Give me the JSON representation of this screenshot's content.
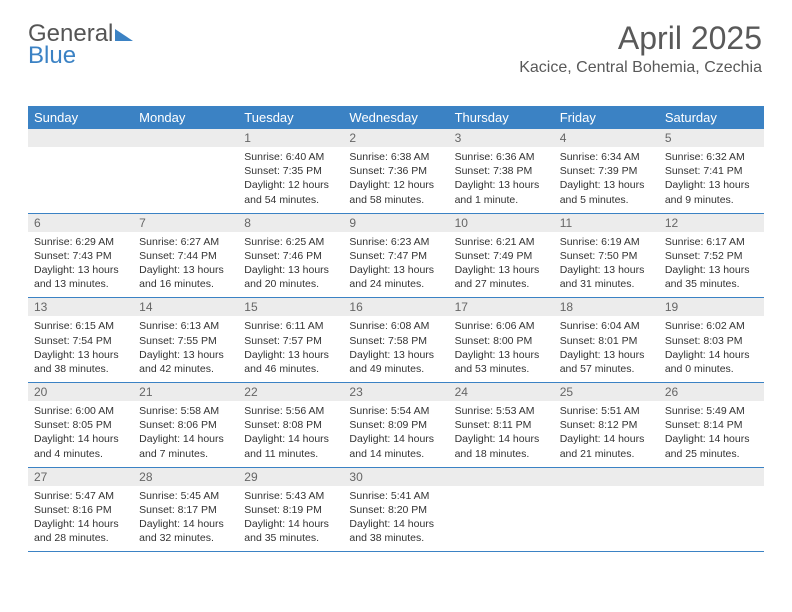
{
  "brand": {
    "part1": "General",
    "part2": "Blue"
  },
  "header": {
    "month_title": "April 2025",
    "location": "Kacice, Central Bohemia, Czechia"
  },
  "colors": {
    "header_bg": "#3b82c4",
    "daynum_bg": "#ececec",
    "text": "#333333",
    "title": "#595959"
  },
  "day_names": [
    "Sunday",
    "Monday",
    "Tuesday",
    "Wednesday",
    "Thursday",
    "Friday",
    "Saturday"
  ],
  "weeks": [
    [
      {
        "day": "",
        "sunrise": "",
        "sunset": "",
        "daylight1": "",
        "daylight2": ""
      },
      {
        "day": "",
        "sunrise": "",
        "sunset": "",
        "daylight1": "",
        "daylight2": ""
      },
      {
        "day": "1",
        "sunrise": "Sunrise: 6:40 AM",
        "sunset": "Sunset: 7:35 PM",
        "daylight1": "Daylight: 12 hours",
        "daylight2": "and 54 minutes."
      },
      {
        "day": "2",
        "sunrise": "Sunrise: 6:38 AM",
        "sunset": "Sunset: 7:36 PM",
        "daylight1": "Daylight: 12 hours",
        "daylight2": "and 58 minutes."
      },
      {
        "day": "3",
        "sunrise": "Sunrise: 6:36 AM",
        "sunset": "Sunset: 7:38 PM",
        "daylight1": "Daylight: 13 hours",
        "daylight2": "and 1 minute."
      },
      {
        "day": "4",
        "sunrise": "Sunrise: 6:34 AM",
        "sunset": "Sunset: 7:39 PM",
        "daylight1": "Daylight: 13 hours",
        "daylight2": "and 5 minutes."
      },
      {
        "day": "5",
        "sunrise": "Sunrise: 6:32 AM",
        "sunset": "Sunset: 7:41 PM",
        "daylight1": "Daylight: 13 hours",
        "daylight2": "and 9 minutes."
      }
    ],
    [
      {
        "day": "6",
        "sunrise": "Sunrise: 6:29 AM",
        "sunset": "Sunset: 7:43 PM",
        "daylight1": "Daylight: 13 hours",
        "daylight2": "and 13 minutes."
      },
      {
        "day": "7",
        "sunrise": "Sunrise: 6:27 AM",
        "sunset": "Sunset: 7:44 PM",
        "daylight1": "Daylight: 13 hours",
        "daylight2": "and 16 minutes."
      },
      {
        "day": "8",
        "sunrise": "Sunrise: 6:25 AM",
        "sunset": "Sunset: 7:46 PM",
        "daylight1": "Daylight: 13 hours",
        "daylight2": "and 20 minutes."
      },
      {
        "day": "9",
        "sunrise": "Sunrise: 6:23 AM",
        "sunset": "Sunset: 7:47 PM",
        "daylight1": "Daylight: 13 hours",
        "daylight2": "and 24 minutes."
      },
      {
        "day": "10",
        "sunrise": "Sunrise: 6:21 AM",
        "sunset": "Sunset: 7:49 PM",
        "daylight1": "Daylight: 13 hours",
        "daylight2": "and 27 minutes."
      },
      {
        "day": "11",
        "sunrise": "Sunrise: 6:19 AM",
        "sunset": "Sunset: 7:50 PM",
        "daylight1": "Daylight: 13 hours",
        "daylight2": "and 31 minutes."
      },
      {
        "day": "12",
        "sunrise": "Sunrise: 6:17 AM",
        "sunset": "Sunset: 7:52 PM",
        "daylight1": "Daylight: 13 hours",
        "daylight2": "and 35 minutes."
      }
    ],
    [
      {
        "day": "13",
        "sunrise": "Sunrise: 6:15 AM",
        "sunset": "Sunset: 7:54 PM",
        "daylight1": "Daylight: 13 hours",
        "daylight2": "and 38 minutes."
      },
      {
        "day": "14",
        "sunrise": "Sunrise: 6:13 AM",
        "sunset": "Sunset: 7:55 PM",
        "daylight1": "Daylight: 13 hours",
        "daylight2": "and 42 minutes."
      },
      {
        "day": "15",
        "sunrise": "Sunrise: 6:11 AM",
        "sunset": "Sunset: 7:57 PM",
        "daylight1": "Daylight: 13 hours",
        "daylight2": "and 46 minutes."
      },
      {
        "day": "16",
        "sunrise": "Sunrise: 6:08 AM",
        "sunset": "Sunset: 7:58 PM",
        "daylight1": "Daylight: 13 hours",
        "daylight2": "and 49 minutes."
      },
      {
        "day": "17",
        "sunrise": "Sunrise: 6:06 AM",
        "sunset": "Sunset: 8:00 PM",
        "daylight1": "Daylight: 13 hours",
        "daylight2": "and 53 minutes."
      },
      {
        "day": "18",
        "sunrise": "Sunrise: 6:04 AM",
        "sunset": "Sunset: 8:01 PM",
        "daylight1": "Daylight: 13 hours",
        "daylight2": "and 57 minutes."
      },
      {
        "day": "19",
        "sunrise": "Sunrise: 6:02 AM",
        "sunset": "Sunset: 8:03 PM",
        "daylight1": "Daylight: 14 hours",
        "daylight2": "and 0 minutes."
      }
    ],
    [
      {
        "day": "20",
        "sunrise": "Sunrise: 6:00 AM",
        "sunset": "Sunset: 8:05 PM",
        "daylight1": "Daylight: 14 hours",
        "daylight2": "and 4 minutes."
      },
      {
        "day": "21",
        "sunrise": "Sunrise: 5:58 AM",
        "sunset": "Sunset: 8:06 PM",
        "daylight1": "Daylight: 14 hours",
        "daylight2": "and 7 minutes."
      },
      {
        "day": "22",
        "sunrise": "Sunrise: 5:56 AM",
        "sunset": "Sunset: 8:08 PM",
        "daylight1": "Daylight: 14 hours",
        "daylight2": "and 11 minutes."
      },
      {
        "day": "23",
        "sunrise": "Sunrise: 5:54 AM",
        "sunset": "Sunset: 8:09 PM",
        "daylight1": "Daylight: 14 hours",
        "daylight2": "and 14 minutes."
      },
      {
        "day": "24",
        "sunrise": "Sunrise: 5:53 AM",
        "sunset": "Sunset: 8:11 PM",
        "daylight1": "Daylight: 14 hours",
        "daylight2": "and 18 minutes."
      },
      {
        "day": "25",
        "sunrise": "Sunrise: 5:51 AM",
        "sunset": "Sunset: 8:12 PM",
        "daylight1": "Daylight: 14 hours",
        "daylight2": "and 21 minutes."
      },
      {
        "day": "26",
        "sunrise": "Sunrise: 5:49 AM",
        "sunset": "Sunset: 8:14 PM",
        "daylight1": "Daylight: 14 hours",
        "daylight2": "and 25 minutes."
      }
    ],
    [
      {
        "day": "27",
        "sunrise": "Sunrise: 5:47 AM",
        "sunset": "Sunset: 8:16 PM",
        "daylight1": "Daylight: 14 hours",
        "daylight2": "and 28 minutes."
      },
      {
        "day": "28",
        "sunrise": "Sunrise: 5:45 AM",
        "sunset": "Sunset: 8:17 PM",
        "daylight1": "Daylight: 14 hours",
        "daylight2": "and 32 minutes."
      },
      {
        "day": "29",
        "sunrise": "Sunrise: 5:43 AM",
        "sunset": "Sunset: 8:19 PM",
        "daylight1": "Daylight: 14 hours",
        "daylight2": "and 35 minutes."
      },
      {
        "day": "30",
        "sunrise": "Sunrise: 5:41 AM",
        "sunset": "Sunset: 8:20 PM",
        "daylight1": "Daylight: 14 hours",
        "daylight2": "and 38 minutes."
      },
      {
        "day": "",
        "sunrise": "",
        "sunset": "",
        "daylight1": "",
        "daylight2": ""
      },
      {
        "day": "",
        "sunrise": "",
        "sunset": "",
        "daylight1": "",
        "daylight2": ""
      },
      {
        "day": "",
        "sunrise": "",
        "sunset": "",
        "daylight1": "",
        "daylight2": ""
      }
    ]
  ]
}
